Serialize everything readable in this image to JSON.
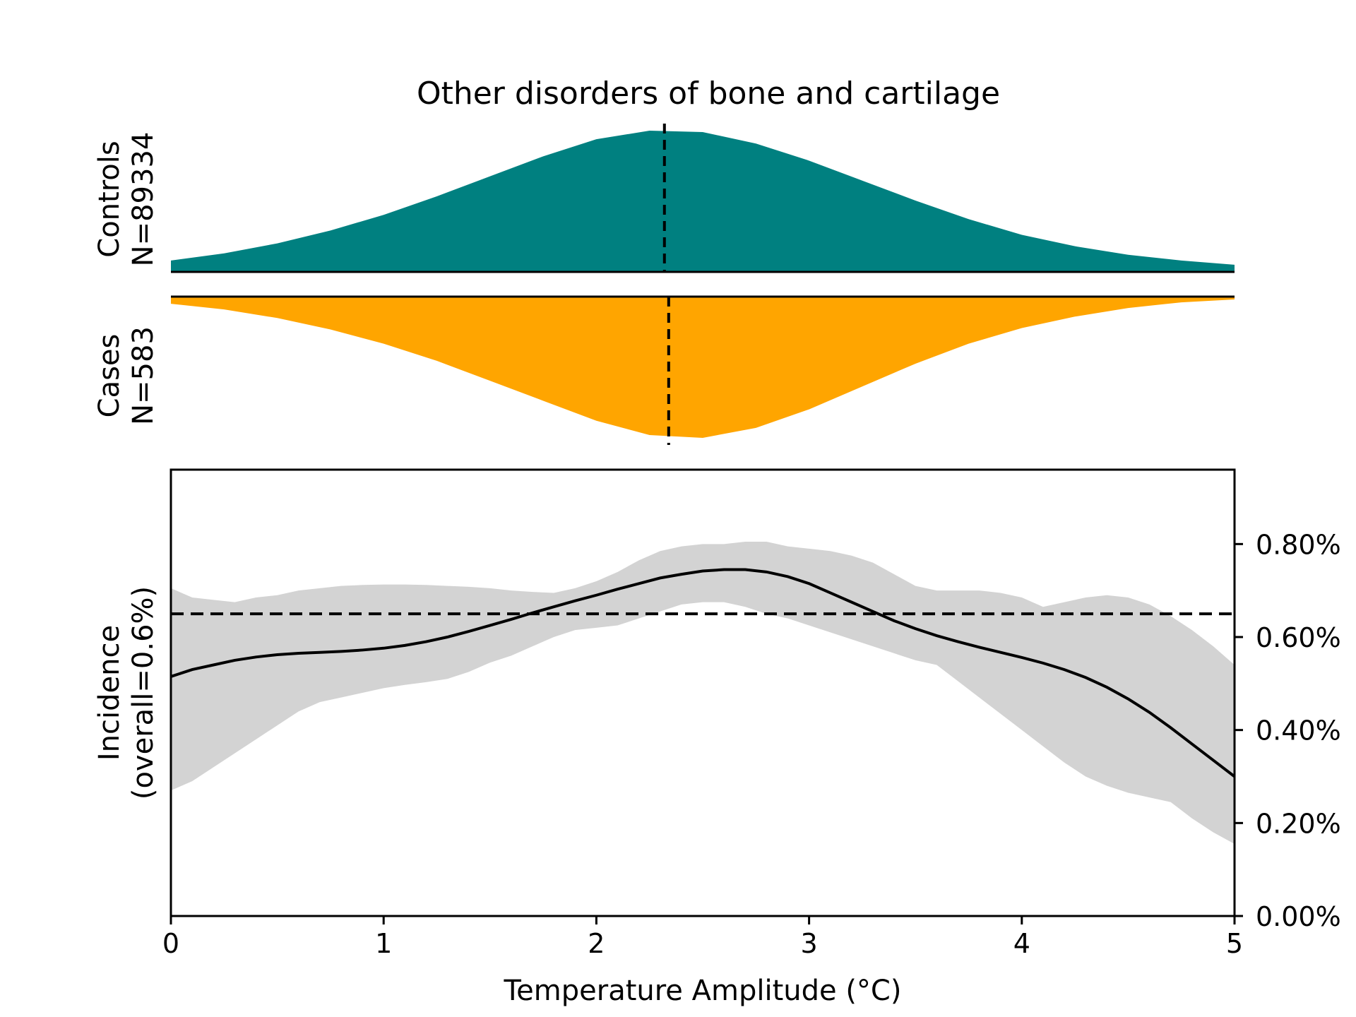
{
  "chart_data": [
    {
      "type": "area",
      "title": "Other disorders of bone and cartilage",
      "panel_label_line1": "Controls",
      "panel_label_line2": "N=89334",
      "color": "#008080",
      "median": 2.32,
      "density": {
        "x": [
          0.0,
          0.25,
          0.5,
          0.75,
          1.0,
          1.25,
          1.5,
          1.75,
          2.0,
          2.25,
          2.5,
          2.75,
          3.0,
          3.25,
          3.5,
          3.75,
          4.0,
          4.25,
          4.5,
          4.75,
          5.0
        ],
        "y": [
          0.08,
          0.13,
          0.2,
          0.29,
          0.4,
          0.53,
          0.67,
          0.81,
          0.93,
          0.99,
          0.98,
          0.9,
          0.78,
          0.64,
          0.5,
          0.37,
          0.26,
          0.18,
          0.12,
          0.08,
          0.05
        ]
      }
    },
    {
      "type": "area",
      "panel_label_line1": "Cases",
      "panel_label_line2": "N=583",
      "color": "#FFA500",
      "median": 2.34,
      "density": {
        "x": [
          0.0,
          0.25,
          0.5,
          0.75,
          1.0,
          1.25,
          1.5,
          1.75,
          2.0,
          2.25,
          2.5,
          2.75,
          3.0,
          3.25,
          3.5,
          3.75,
          4.0,
          4.25,
          4.5,
          4.75,
          5.0
        ],
        "y": [
          0.05,
          0.09,
          0.15,
          0.23,
          0.33,
          0.45,
          0.59,
          0.73,
          0.87,
          0.97,
          0.99,
          0.92,
          0.79,
          0.63,
          0.47,
          0.33,
          0.22,
          0.14,
          0.08,
          0.04,
          0.02
        ]
      }
    },
    {
      "type": "line",
      "xlabel": "Temperature Amplitude (°C)",
      "ylabel_line1": "Incidence",
      "ylabel_line2": "(overall=0.6%)",
      "xlim": [
        0,
        5
      ],
      "ylim": [
        0,
        0.96
      ],
      "x_ticks": [
        0,
        1,
        2,
        3,
        4,
        5
      ],
      "x_tick_labels": [
        "0",
        "1",
        "2",
        "3",
        "4",
        "5"
      ],
      "y_ticks": [
        0,
        0.2,
        0.4,
        0.6,
        0.8
      ],
      "y_tick_labels": [
        "0.00%",
        "0.20%",
        "0.40%",
        "0.60%",
        "0.80%"
      ],
      "y_axis_side": "right",
      "overall_line": 0.65,
      "ci_color": "#D3D3D3",
      "x": [
        0.0,
        0.1,
        0.2,
        0.3,
        0.4,
        0.5,
        0.6,
        0.7,
        0.8,
        0.9,
        1.0,
        1.1,
        1.2,
        1.3,
        1.4,
        1.5,
        1.6,
        1.7,
        1.8,
        1.9,
        2.0,
        2.1,
        2.2,
        2.3,
        2.4,
        2.5,
        2.6,
        2.7,
        2.8,
        2.9,
        3.0,
        3.1,
        3.2,
        3.3,
        3.4,
        3.5,
        3.6,
        3.7,
        3.8,
        3.9,
        4.0,
        4.1,
        4.2,
        4.3,
        4.4,
        4.5,
        4.6,
        4.7,
        4.8,
        4.9,
        5.0
      ],
      "y": [
        0.515,
        0.53,
        0.54,
        0.55,
        0.557,
        0.562,
        0.565,
        0.567,
        0.569,
        0.572,
        0.576,
        0.582,
        0.59,
        0.6,
        0.612,
        0.625,
        0.638,
        0.652,
        0.665,
        0.678,
        0.69,
        0.703,
        0.715,
        0.727,
        0.735,
        0.742,
        0.745,
        0.745,
        0.74,
        0.73,
        0.715,
        0.695,
        0.675,
        0.655,
        0.635,
        0.618,
        0.603,
        0.59,
        0.578,
        0.567,
        0.556,
        0.544,
        0.53,
        0.513,
        0.492,
        0.467,
        0.438,
        0.405,
        0.37,
        0.335,
        0.3
      ],
      "ci_upper": [
        0.705,
        0.685,
        0.68,
        0.675,
        0.685,
        0.69,
        0.7,
        0.705,
        0.71,
        0.712,
        0.713,
        0.713,
        0.712,
        0.71,
        0.708,
        0.705,
        0.7,
        0.697,
        0.695,
        0.705,
        0.72,
        0.74,
        0.765,
        0.785,
        0.795,
        0.8,
        0.8,
        0.805,
        0.805,
        0.795,
        0.79,
        0.785,
        0.775,
        0.76,
        0.735,
        0.71,
        0.7,
        0.7,
        0.7,
        0.695,
        0.685,
        0.665,
        0.675,
        0.685,
        0.69,
        0.685,
        0.67,
        0.645,
        0.615,
        0.58,
        0.54
      ],
      "ci_lower": [
        0.27,
        0.29,
        0.32,
        0.35,
        0.38,
        0.41,
        0.44,
        0.46,
        0.47,
        0.48,
        0.49,
        0.497,
        0.503,
        0.51,
        0.525,
        0.545,
        0.56,
        0.58,
        0.6,
        0.615,
        0.62,
        0.625,
        0.64,
        0.655,
        0.67,
        0.675,
        0.675,
        0.665,
        0.65,
        0.64,
        0.625,
        0.61,
        0.595,
        0.58,
        0.565,
        0.55,
        0.54,
        0.505,
        0.47,
        0.435,
        0.4,
        0.365,
        0.33,
        0.3,
        0.28,
        0.265,
        0.255,
        0.245,
        0.21,
        0.18,
        0.155
      ]
    }
  ]
}
